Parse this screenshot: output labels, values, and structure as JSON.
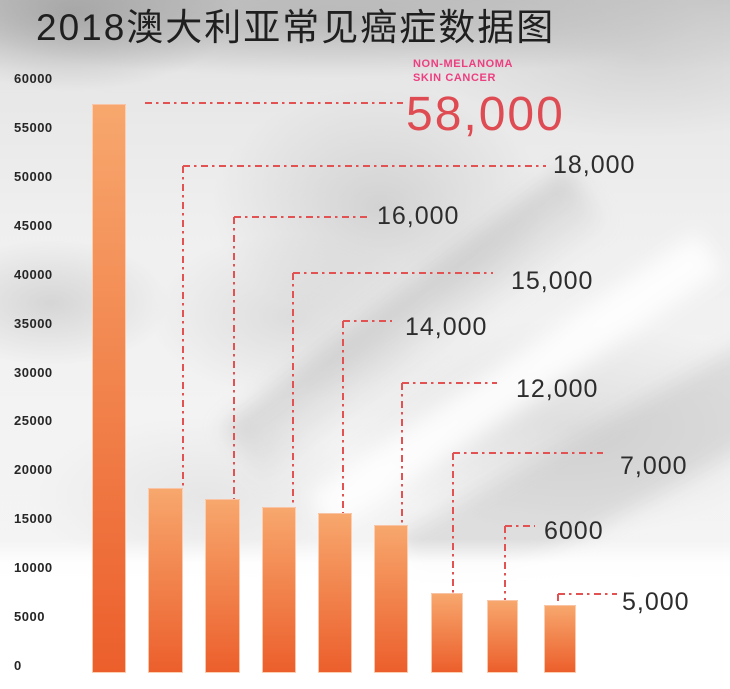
{
  "title": "2018澳大利亚常见癌症数据图",
  "colors": {
    "bar_top": "#f7a76d",
    "bar_bottom": "#ec5f2c",
    "leader_line": "#e25252",
    "highlight_name": "#ed3e80",
    "highlight_value": "#df4b52",
    "label_text": "#2d2d2d"
  },
  "y_axis": {
    "tick_labels": [
      "60000",
      "55000",
      "50000",
      "45000",
      "40000",
      "35000",
      "30000",
      "25000",
      "20000",
      "15000",
      "10000",
      "5000",
      "0"
    ]
  },
  "chart_data": {
    "type": "bar",
    "title": "2018澳大利亚常见癌症数据图",
    "xlabel": "",
    "ylabel": "",
    "ylim": [
      0,
      60000
    ],
    "ytick_step": 5000,
    "grid": false,
    "legend": "none",
    "values": [
      58000,
      18000,
      16000,
      15000,
      14000,
      12000,
      7000,
      6000,
      5000
    ],
    "value_labels": [
      "58,000",
      "18,000",
      "16,000",
      "15,000",
      "14,000",
      "12,000",
      "7,000",
      "6000",
      "5,000"
    ],
    "highlight": {
      "index": 0,
      "name_line1": "NON-MELANOMA",
      "name_line2": "SKIN CANCER"
    }
  }
}
